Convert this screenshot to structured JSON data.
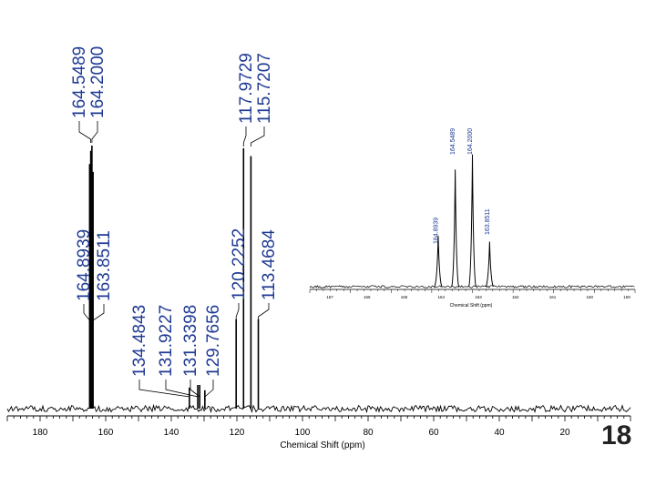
{
  "page_number": "18",
  "colors": {
    "peak_label": "#1f3a93",
    "spectrum": "#000000",
    "axis": "#000000"
  },
  "chart_data": [
    {
      "type": "line",
      "title": "",
      "xlabel": "Chemical Shift (ppm)",
      "ylabel": "",
      "xlim": [
        190,
        0
      ],
      "x_ticks": [
        180,
        160,
        140,
        120,
        100,
        80,
        60,
        40,
        20
      ],
      "series": [
        {
          "peaks": [
            {
              "ppm": 164.8939,
              "label": "164.8939",
              "intensity": 0.93
            },
            {
              "ppm": 164.5489,
              "label": "164.5489",
              "intensity": 0.98
            },
            {
              "ppm": 164.2,
              "label": "164.2000",
              "intensity": 1.0
            },
            {
              "ppm": 163.8511,
              "label": "163.8511",
              "intensity": 0.9
            },
            {
              "ppm": 134.4843,
              "label": "134.4843",
              "intensity": 0.08
            },
            {
              "ppm": 131.9227,
              "label": "131.9227",
              "intensity": 0.09
            },
            {
              "ppm": 131.3398,
              "label": "131.3398",
              "intensity": 0.09
            },
            {
              "ppm": 129.7656,
              "label": "129.7656",
              "intensity": 0.07
            },
            {
              "ppm": 120.2252,
              "label": "120.2252",
              "intensity": 0.34
            },
            {
              "ppm": 117.9729,
              "label": "117.9729",
              "intensity": 0.99
            },
            {
              "ppm": 115.7207,
              "label": "115.7207",
              "intensity": 0.96
            },
            {
              "ppm": 113.4684,
              "label": "113.4684",
              "intensity": 0.34
            }
          ]
        }
      ]
    },
    {
      "type": "line",
      "title": "",
      "xlabel": "Chemical Shift (ppm)",
      "ylabel": "",
      "xlim": [
        167.5,
        160.9
      ],
      "x_ticks": [
        "167",
        "166",
        "165",
        "164",
        "163",
        "162",
        "161",
        "160",
        "159"
      ],
      "series": [
        {
          "peaks": [
            {
              "ppm": 164.8939,
              "label": "164.8939",
              "intensity": 0.34
            },
            {
              "ppm": 164.5489,
              "label": "164.5489",
              "intensity": 0.78
            },
            {
              "ppm": 164.2,
              "label": "164.2000",
              "intensity": 0.88
            },
            {
              "ppm": 163.8511,
              "label": "163.8511",
              "intensity": 0.3
            }
          ]
        }
      ]
    }
  ]
}
